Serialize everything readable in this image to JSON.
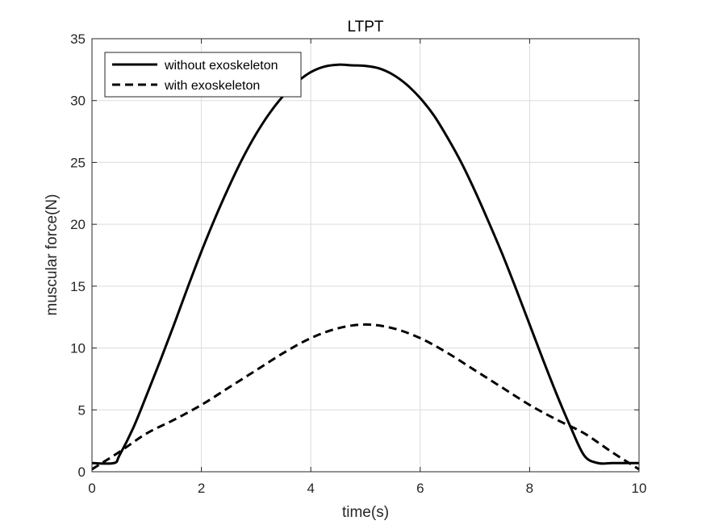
{
  "chart_data": {
    "type": "line",
    "title": "LTPT",
    "xlabel": "time(s)",
    "ylabel": "muscular force(N)",
    "xlim": [
      0,
      10
    ],
    "ylim": [
      0,
      35
    ],
    "xticks": [
      0,
      2,
      4,
      6,
      8,
      10
    ],
    "yticks": [
      0,
      5,
      10,
      15,
      20,
      25,
      30,
      35
    ],
    "grid": true,
    "legend_position": "top-left",
    "series": [
      {
        "name": "without exoskeleton",
        "line_style": "solid",
        "color": "#000000",
        "x": [
          0,
          0.4,
          0.5,
          0.75,
          1.0,
          1.25,
          1.5,
          1.75,
          2.0,
          2.25,
          2.5,
          2.75,
          3.0,
          3.25,
          3.5,
          3.75,
          4.0,
          4.25,
          4.5,
          4.75,
          5.0,
          5.25,
          5.5,
          5.75,
          6.0,
          6.25,
          6.5,
          6.75,
          7.0,
          7.25,
          7.5,
          7.75,
          8.0,
          8.25,
          8.5,
          8.75,
          9.0,
          9.25,
          9.5,
          9.6,
          10
        ],
        "y": [
          0.7,
          0.7,
          1.3,
          3.5,
          6.2,
          9.0,
          11.9,
          14.9,
          17.8,
          20.5,
          23.0,
          25.3,
          27.3,
          29.0,
          30.4,
          31.5,
          32.3,
          32.75,
          32.9,
          32.85,
          32.8,
          32.6,
          32.1,
          31.3,
          30.2,
          28.8,
          27.0,
          25.0,
          22.7,
          20.2,
          17.6,
          14.8,
          11.9,
          9.0,
          6.2,
          3.6,
          1.3,
          0.7,
          0.7,
          0.7,
          0.7
        ]
      },
      {
        "name": "with exoskeleton",
        "line_style": "dashed",
        "color": "#000000",
        "x": [
          0,
          0.5,
          1.0,
          1.5,
          2.0,
          2.5,
          3.0,
          3.5,
          4.0,
          4.5,
          5.0,
          5.5,
          6.0,
          6.5,
          7.0,
          7.5,
          8.0,
          8.5,
          9.0,
          9.5,
          10
        ],
        "y": [
          0.2,
          1.6,
          3.1,
          4.2,
          5.4,
          6.8,
          8.2,
          9.6,
          10.8,
          11.6,
          11.9,
          11.6,
          10.8,
          9.6,
          8.2,
          6.8,
          5.4,
          4.2,
          3.1,
          1.6,
          0.2
        ]
      }
    ]
  }
}
